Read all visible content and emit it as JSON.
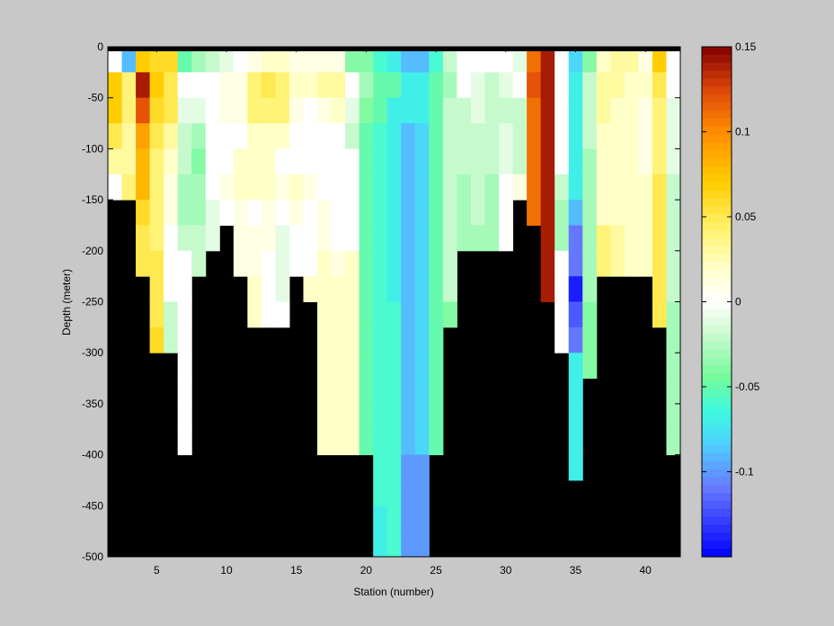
{
  "chart_data": {
    "type": "heatmap",
    "xlabel": "Station (number)",
    "ylabel": "Depth (meter)",
    "xlim": [
      1.5,
      42.5
    ],
    "ylim": [
      -500,
      0
    ],
    "x_ticks": [
      5,
      10,
      15,
      20,
      25,
      30,
      35,
      40
    ],
    "x_tick_labels": [
      "5",
      "10",
      "15",
      "20",
      "25",
      "30",
      "35",
      "40"
    ],
    "y_ticks": [
      0,
      -50,
      -100,
      -150,
      -200,
      -250,
      -300,
      -350,
      -400,
      -450,
      -500
    ],
    "y_tick_labels": [
      "0",
      "-50",
      "-100",
      "-150",
      "-200",
      "-250",
      "-300",
      "-350",
      "-400",
      "-450",
      "-500"
    ],
    "stations": [
      2,
      3,
      4,
      5,
      6,
      7,
      8,
      9,
      10,
      11,
      12,
      13,
      14,
      15,
      16,
      17,
      18,
      19,
      20,
      21,
      22,
      23,
      24,
      25,
      26,
      27,
      28,
      29,
      30,
      31,
      32,
      33,
      34,
      35,
      36,
      37,
      38,
      39,
      40,
      41,
      42
    ],
    "depths": [
      0,
      -25,
      -50,
      -75,
      -100,
      -125,
      -150,
      -175,
      -200,
      -225,
      -250,
      -275,
      -300,
      -325,
      -350,
      -375,
      -400,
      -425,
      -450,
      -475
    ],
    "bin_height": 25,
    "profiles": [
      {
        "station": 2,
        "values": [
          0.0,
          0.07,
          0.07,
          0.05,
          0.03,
          0.0
        ]
      },
      {
        "station": 3,
        "values": [
          -0.09,
          0.04,
          0.04,
          0.03,
          0.03,
          0.04
        ]
      },
      {
        "station": 4,
        "values": [
          0.07,
          0.14,
          0.12,
          0.09,
          0.08,
          0.08,
          0.06,
          0.05,
          0.05
        ]
      },
      {
        "station": 5,
        "values": [
          0.06,
          0.07,
          0.06,
          0.05,
          0.04,
          0.04,
          0.04,
          0.04,
          0.05,
          0.05,
          0.05,
          0.06
        ]
      },
      {
        "station": 6,
        "values": [
          0.06,
          0.05,
          0.05,
          0.03,
          0.02,
          0.01,
          0.01,
          0.0,
          0.0,
          0.0,
          -0.02,
          -0.02
        ]
      },
      {
        "station": 7,
        "values": [
          -0.05,
          0.0,
          -0.01,
          -0.02,
          -0.02,
          -0.03,
          -0.03,
          -0.02,
          0.0,
          0.0,
          0.0,
          0.0,
          0.0,
          0.0,
          0.0,
          0.0
        ]
      },
      {
        "station": 8,
        "values": [
          -0.03,
          0.0,
          -0.01,
          -0.03,
          -0.04,
          -0.03,
          -0.03,
          -0.02,
          -0.02
        ]
      },
      {
        "station": 9,
        "values": [
          -0.02,
          0.0,
          0.0,
          0.0,
          0.0,
          0.0,
          -0.01,
          -0.01
        ]
      },
      {
        "station": 10,
        "values": [
          -0.01,
          0.01,
          0.01,
          0.0,
          0.0,
          0.01,
          0.0
        ]
      },
      {
        "station": 11,
        "values": [
          0.0,
          0.01,
          0.01,
          0.0,
          0.02,
          0.02,
          0.01,
          0.01,
          0.01
        ]
      },
      {
        "station": 12,
        "values": [
          0.01,
          0.04,
          0.04,
          0.02,
          0.02,
          0.02,
          0.0,
          0.01,
          0.01,
          0.02,
          0.02
        ]
      },
      {
        "station": 13,
        "values": [
          0.02,
          0.05,
          0.04,
          0.02,
          0.02,
          0.02,
          0.01,
          0.01,
          0.0,
          0.0,
          0.0
        ]
      },
      {
        "station": 14,
        "values": [
          0.02,
          0.04,
          0.04,
          0.02,
          0.0,
          0.01,
          0.0,
          -0.01,
          -0.01,
          -0.01,
          0.0
        ]
      },
      {
        "station": 15,
        "values": [
          0.01,
          0.02,
          0.01,
          0.0,
          0.0,
          0.02,
          0.01,
          0.0,
          0.0
        ]
      },
      {
        "station": 16,
        "values": [
          0.01,
          0.02,
          0.0,
          0.0,
          0.0,
          0.01,
          0.0,
          0.0,
          0.0,
          0.02
        ]
      },
      {
        "station": 17,
        "values": [
          0.01,
          0.03,
          0.01,
          0.0,
          0.0,
          0.0,
          0.01,
          0.01,
          0.02,
          0.02,
          0.02,
          0.02,
          0.02,
          0.02,
          0.02,
          0.02
        ]
      },
      {
        "station": 18,
        "values": [
          0.01,
          0.03,
          0.02,
          0.0,
          0.0,
          0.0,
          0.0,
          0.0,
          0.01,
          0.02,
          0.02,
          0.02,
          0.02,
          0.02,
          0.02,
          0.02
        ]
      },
      {
        "station": 19,
        "values": [
          -0.04,
          0.0,
          -0.01,
          -0.02,
          0.0,
          0.0,
          0.0,
          0.0,
          0.02,
          0.02,
          0.02,
          0.02,
          0.02,
          0.02,
          0.02,
          0.02
        ]
      },
      {
        "station": 20,
        "values": [
          -0.04,
          -0.03,
          -0.04,
          -0.05,
          -0.05,
          -0.05,
          -0.05,
          -0.05,
          -0.05,
          -0.05,
          -0.05,
          -0.05,
          -0.05,
          -0.05,
          -0.05,
          -0.05
        ]
      },
      {
        "station": 21,
        "values": [
          -0.06,
          -0.05,
          -0.05,
          -0.06,
          -0.06,
          -0.06,
          -0.06,
          -0.06,
          -0.06,
          -0.06,
          -0.06,
          -0.06,
          -0.06,
          -0.06,
          -0.06,
          -0.06,
          -0.06,
          -0.06,
          -0.07,
          -0.07
        ]
      },
      {
        "station": 22,
        "values": [
          -0.07,
          -0.05,
          -0.07,
          -0.07,
          -0.07,
          -0.07,
          -0.07,
          -0.07,
          -0.07,
          -0.07,
          -0.06,
          -0.06,
          -0.06,
          -0.06,
          -0.06,
          -0.06,
          -0.06,
          -0.06,
          -0.06,
          -0.06
        ]
      },
      {
        "station": 23,
        "values": [
          -0.09,
          -0.07,
          -0.07,
          -0.09,
          -0.09,
          -0.09,
          -0.09,
          -0.09,
          -0.09,
          -0.09,
          -0.09,
          -0.09,
          -0.09,
          -0.09,
          -0.09,
          -0.09,
          -0.1,
          -0.1,
          -0.1,
          -0.1
        ]
      },
      {
        "station": 24,
        "values": [
          -0.09,
          -0.07,
          -0.07,
          -0.08,
          -0.08,
          -0.08,
          -0.08,
          -0.08,
          -0.08,
          -0.08,
          -0.08,
          -0.08,
          -0.08,
          -0.08,
          -0.08,
          -0.08,
          -0.1,
          -0.1,
          -0.1,
          -0.1
        ]
      },
      {
        "station": 25,
        "values": [
          -0.06,
          -0.05,
          -0.05,
          -0.05,
          -0.05,
          -0.05,
          -0.05,
          -0.05,
          -0.05,
          -0.05,
          -0.05,
          -0.05,
          -0.05,
          -0.05,
          -0.05,
          -0.05
        ]
      },
      {
        "station": 26,
        "values": [
          -0.02,
          -0.03,
          -0.02,
          -0.02,
          -0.02,
          -0.02,
          -0.02,
          -0.02,
          -0.02,
          -0.02,
          -0.04
        ]
      },
      {
        "station": 27,
        "values": [
          0.0,
          0.0,
          -0.02,
          -0.02,
          -0.02,
          -0.03,
          -0.03,
          -0.03
        ]
      },
      {
        "station": 28,
        "values": [
          0.0,
          -0.01,
          -0.01,
          -0.02,
          -0.02,
          -0.02,
          -0.02,
          -0.03
        ]
      },
      {
        "station": 29,
        "values": [
          0.0,
          -0.02,
          -0.02,
          -0.02,
          -0.02,
          -0.03,
          -0.03,
          -0.03
        ]
      },
      {
        "station": 30,
        "values": [
          0.0,
          -0.01,
          -0.02,
          -0.01,
          -0.01,
          0.0,
          0.0,
          0.0
        ]
      },
      {
        "station": 31,
        "values": [
          -0.01,
          0.0,
          -0.02,
          -0.02,
          -0.02,
          0.01
        ]
      },
      {
        "station": 32,
        "values": [
          0.11,
          0.12,
          0.11,
          0.11,
          0.11,
          0.11,
          0.11
        ]
      },
      {
        "station": 33,
        "values": [
          0.14,
          0.14,
          0.14,
          0.14,
          0.14,
          0.14,
          0.14,
          0.14,
          0.14,
          0.14
        ]
      },
      {
        "station": 34,
        "values": [
          0.0,
          0.0,
          0.0,
          0.0,
          0.0,
          -0.02,
          -0.03,
          -0.03,
          0.0,
          0.0,
          0.0,
          0.0
        ]
      },
      {
        "station": 35,
        "values": [
          -0.08,
          -0.07,
          -0.07,
          -0.07,
          -0.07,
          -0.07,
          -0.09,
          -0.11,
          -0.11,
          -0.14,
          -0.12,
          -0.11,
          -0.07,
          -0.07,
          -0.07,
          -0.07,
          -0.07
        ]
      },
      {
        "station": 36,
        "values": [
          -0.04,
          -0.02,
          -0.02,
          -0.02,
          -0.03,
          -0.03,
          -0.03,
          -0.03,
          -0.03,
          -0.03,
          -0.04,
          -0.04,
          -0.04
        ]
      },
      {
        "station": 37,
        "values": [
          0.02,
          0.03,
          0.03,
          0.02,
          0.02,
          0.02,
          0.02,
          0.04,
          0.04
        ]
      },
      {
        "station": 38,
        "values": [
          0.03,
          0.03,
          0.02,
          0.02,
          0.02,
          0.02,
          0.02,
          0.03,
          0.03
        ]
      },
      {
        "station": 39,
        "values": [
          0.03,
          0.02,
          0.02,
          0.02,
          0.02,
          0.02,
          0.02,
          0.02,
          0.02
        ]
      },
      {
        "station": 40,
        "values": [
          0.01,
          0.02,
          0.01,
          0.01,
          0.01,
          0.02,
          0.02,
          0.02,
          0.02
        ]
      },
      {
        "station": 41,
        "values": [
          0.07,
          0.05,
          0.04,
          0.04,
          0.04,
          0.05,
          0.05,
          0.05,
          0.05,
          0.05,
          0.05
        ]
      },
      {
        "station": 42,
        "values": [
          0.0,
          0.0,
          -0.01,
          -0.01,
          -0.01,
          -0.02,
          -0.02,
          -0.02,
          -0.02,
          -0.02,
          -0.03,
          -0.03,
          -0.03,
          -0.03,
          -0.03,
          -0.03
        ]
      }
    ],
    "missing_color": "#000000",
    "surface_color": "#000000",
    "background_color": "#c8c8c8",
    "colorbar": {
      "colormap": "jet-white-centered",
      "range": [
        -0.15,
        0.15
      ],
      "ticks": [
        0.15,
        0.1,
        0.05,
        0,
        -0.05,
        -0.1
      ],
      "tick_labels": [
        "0.15",
        "0.1",
        "0.05",
        "0",
        "-0.05",
        "-0.1"
      ],
      "levels": 64,
      "position": "right"
    },
    "grid": false,
    "legend": "none"
  }
}
